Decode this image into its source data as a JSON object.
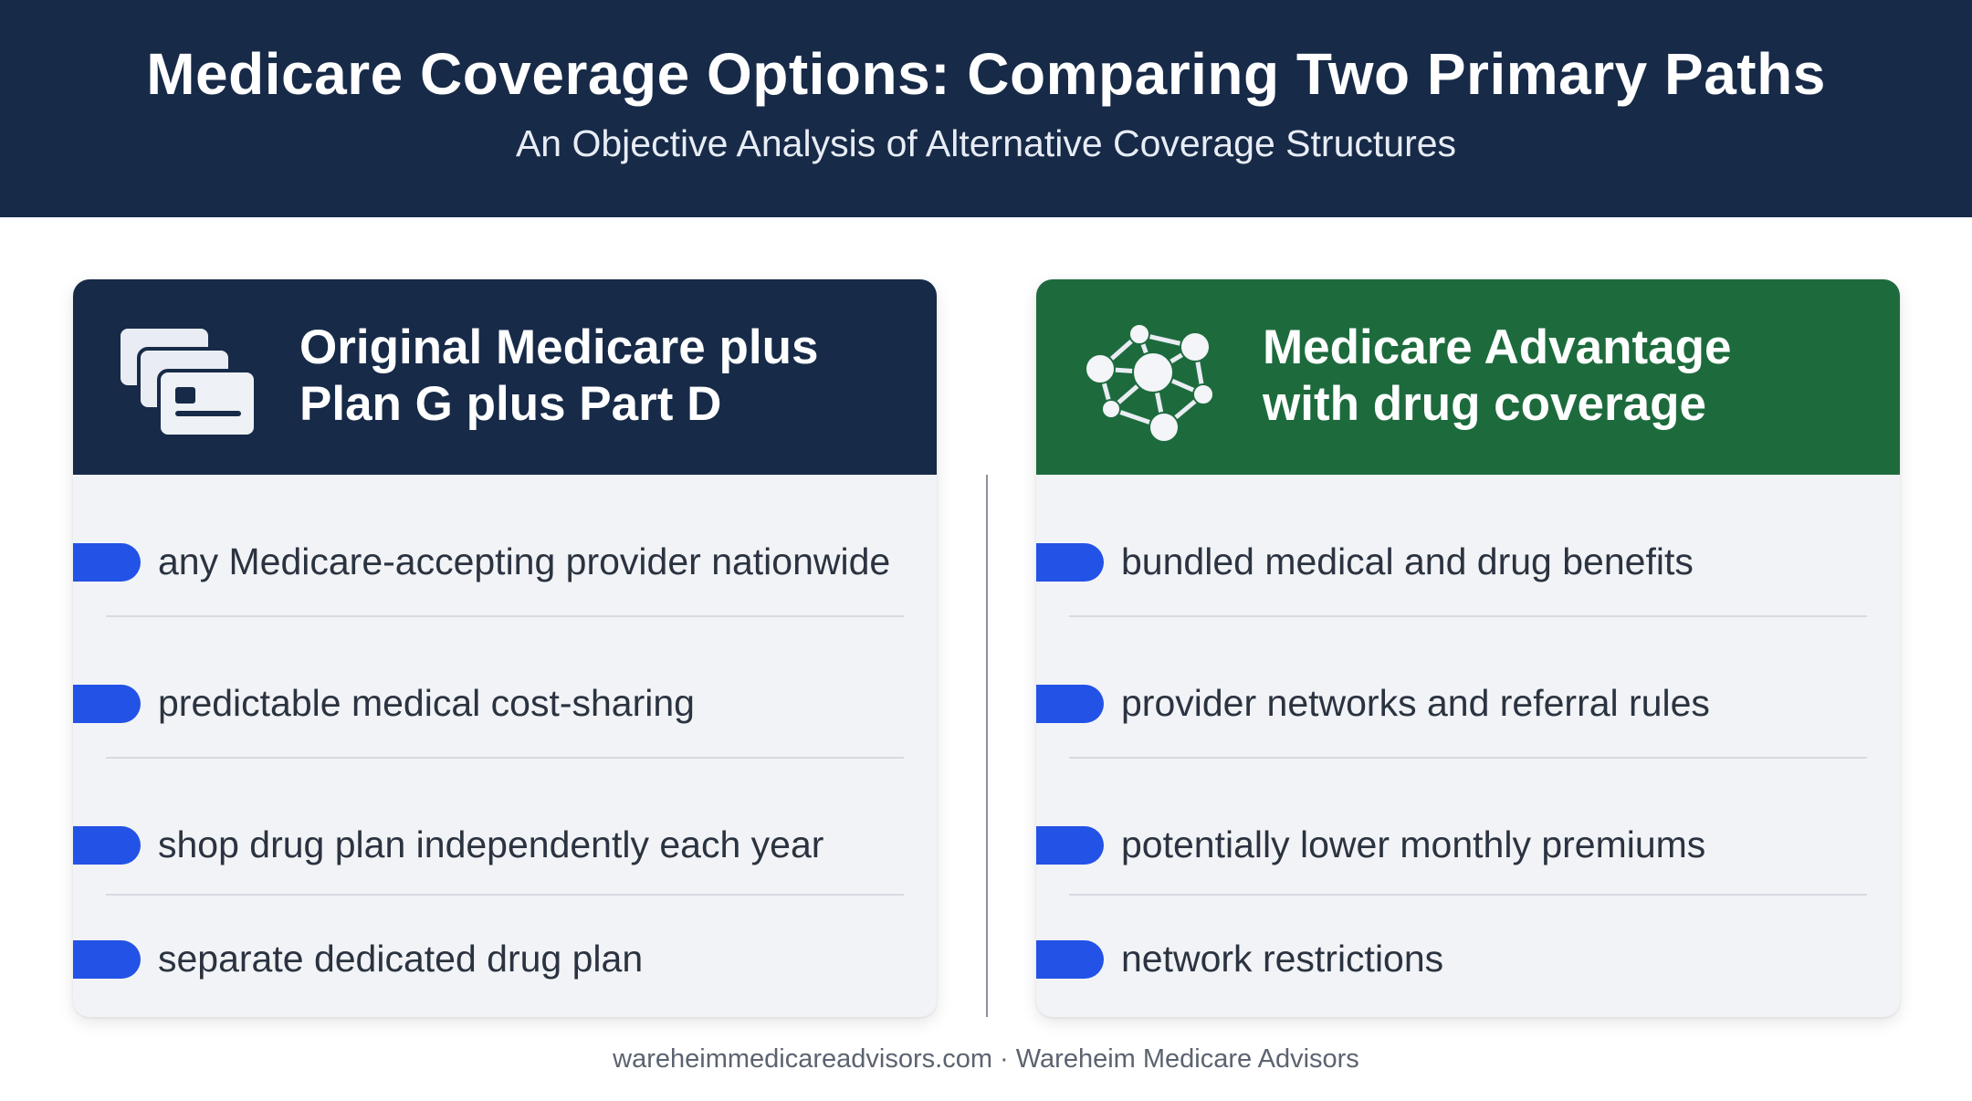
{
  "header": {
    "title": "Medicare Coverage Options: Comparing Two Primary Paths",
    "subtitle": "An Objective Analysis of Alternative Coverage Structures"
  },
  "colors": {
    "navy": "#172a48",
    "green": "#1d6b3d",
    "bullet_blue": "#2352e6",
    "card_bg": "#f1f3f6"
  },
  "left_card": {
    "icon": "cards-stack-icon",
    "title_line1": "Original Medicare plus",
    "title_line2": "Plan G plus Part D",
    "items": [
      "any Medicare-accepting provider nationwide",
      "predictable medical cost-sharing",
      "shop drug plan independently each year",
      "separate dedicated drug plan"
    ]
  },
  "right_card": {
    "icon": "network-nodes-icon",
    "title_line1": "Medicare Advantage",
    "title_line2": "with drug coverage",
    "items": [
      "bundled medical and drug benefits",
      "provider networks and referral rules",
      "potentially lower monthly premiums",
      "network restrictions"
    ]
  },
  "footer": {
    "text": "wareheimmedicareadvisors.com · Wareheim Medicare Advisors"
  }
}
